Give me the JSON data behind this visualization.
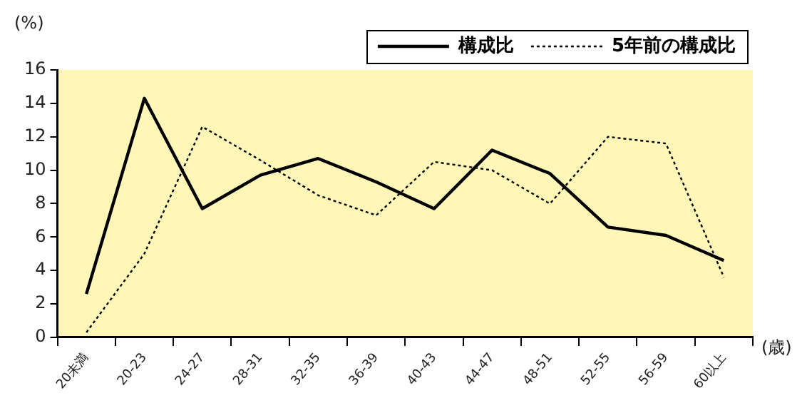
{
  "chart_data": {
    "type": "line",
    "ylabel": "(%)",
    "xlabel": "(歳)",
    "categories": [
      "20未満",
      "20-23",
      "24-27",
      "28-31",
      "32-35",
      "36-39",
      "40-43",
      "44-47",
      "48-51",
      "52-55",
      "56-59",
      "60以上"
    ],
    "series": [
      {
        "name": "構成比",
        "color": "#000000",
        "line_style": "solid",
        "values": [
          2.6,
          14.3,
          7.7,
          9.7,
          10.7,
          9.3,
          7.7,
          11.2,
          9.8,
          6.6,
          6.1,
          4.6
        ]
      },
      {
        "name": "5年前の構成比",
        "color": "#000000",
        "line_style": "dotted",
        "values": [
          0.3,
          5.0,
          12.6,
          10.6,
          8.5,
          7.3,
          10.5,
          10.0,
          8.0,
          12.0,
          11.6,
          3.6
        ]
      }
    ],
    "ylim": [
      0,
      16
    ],
    "yticks": [
      0,
      2,
      4,
      6,
      8,
      10,
      12,
      14,
      16
    ],
    "grid": false,
    "legend": "top right",
    "marker": "none"
  }
}
